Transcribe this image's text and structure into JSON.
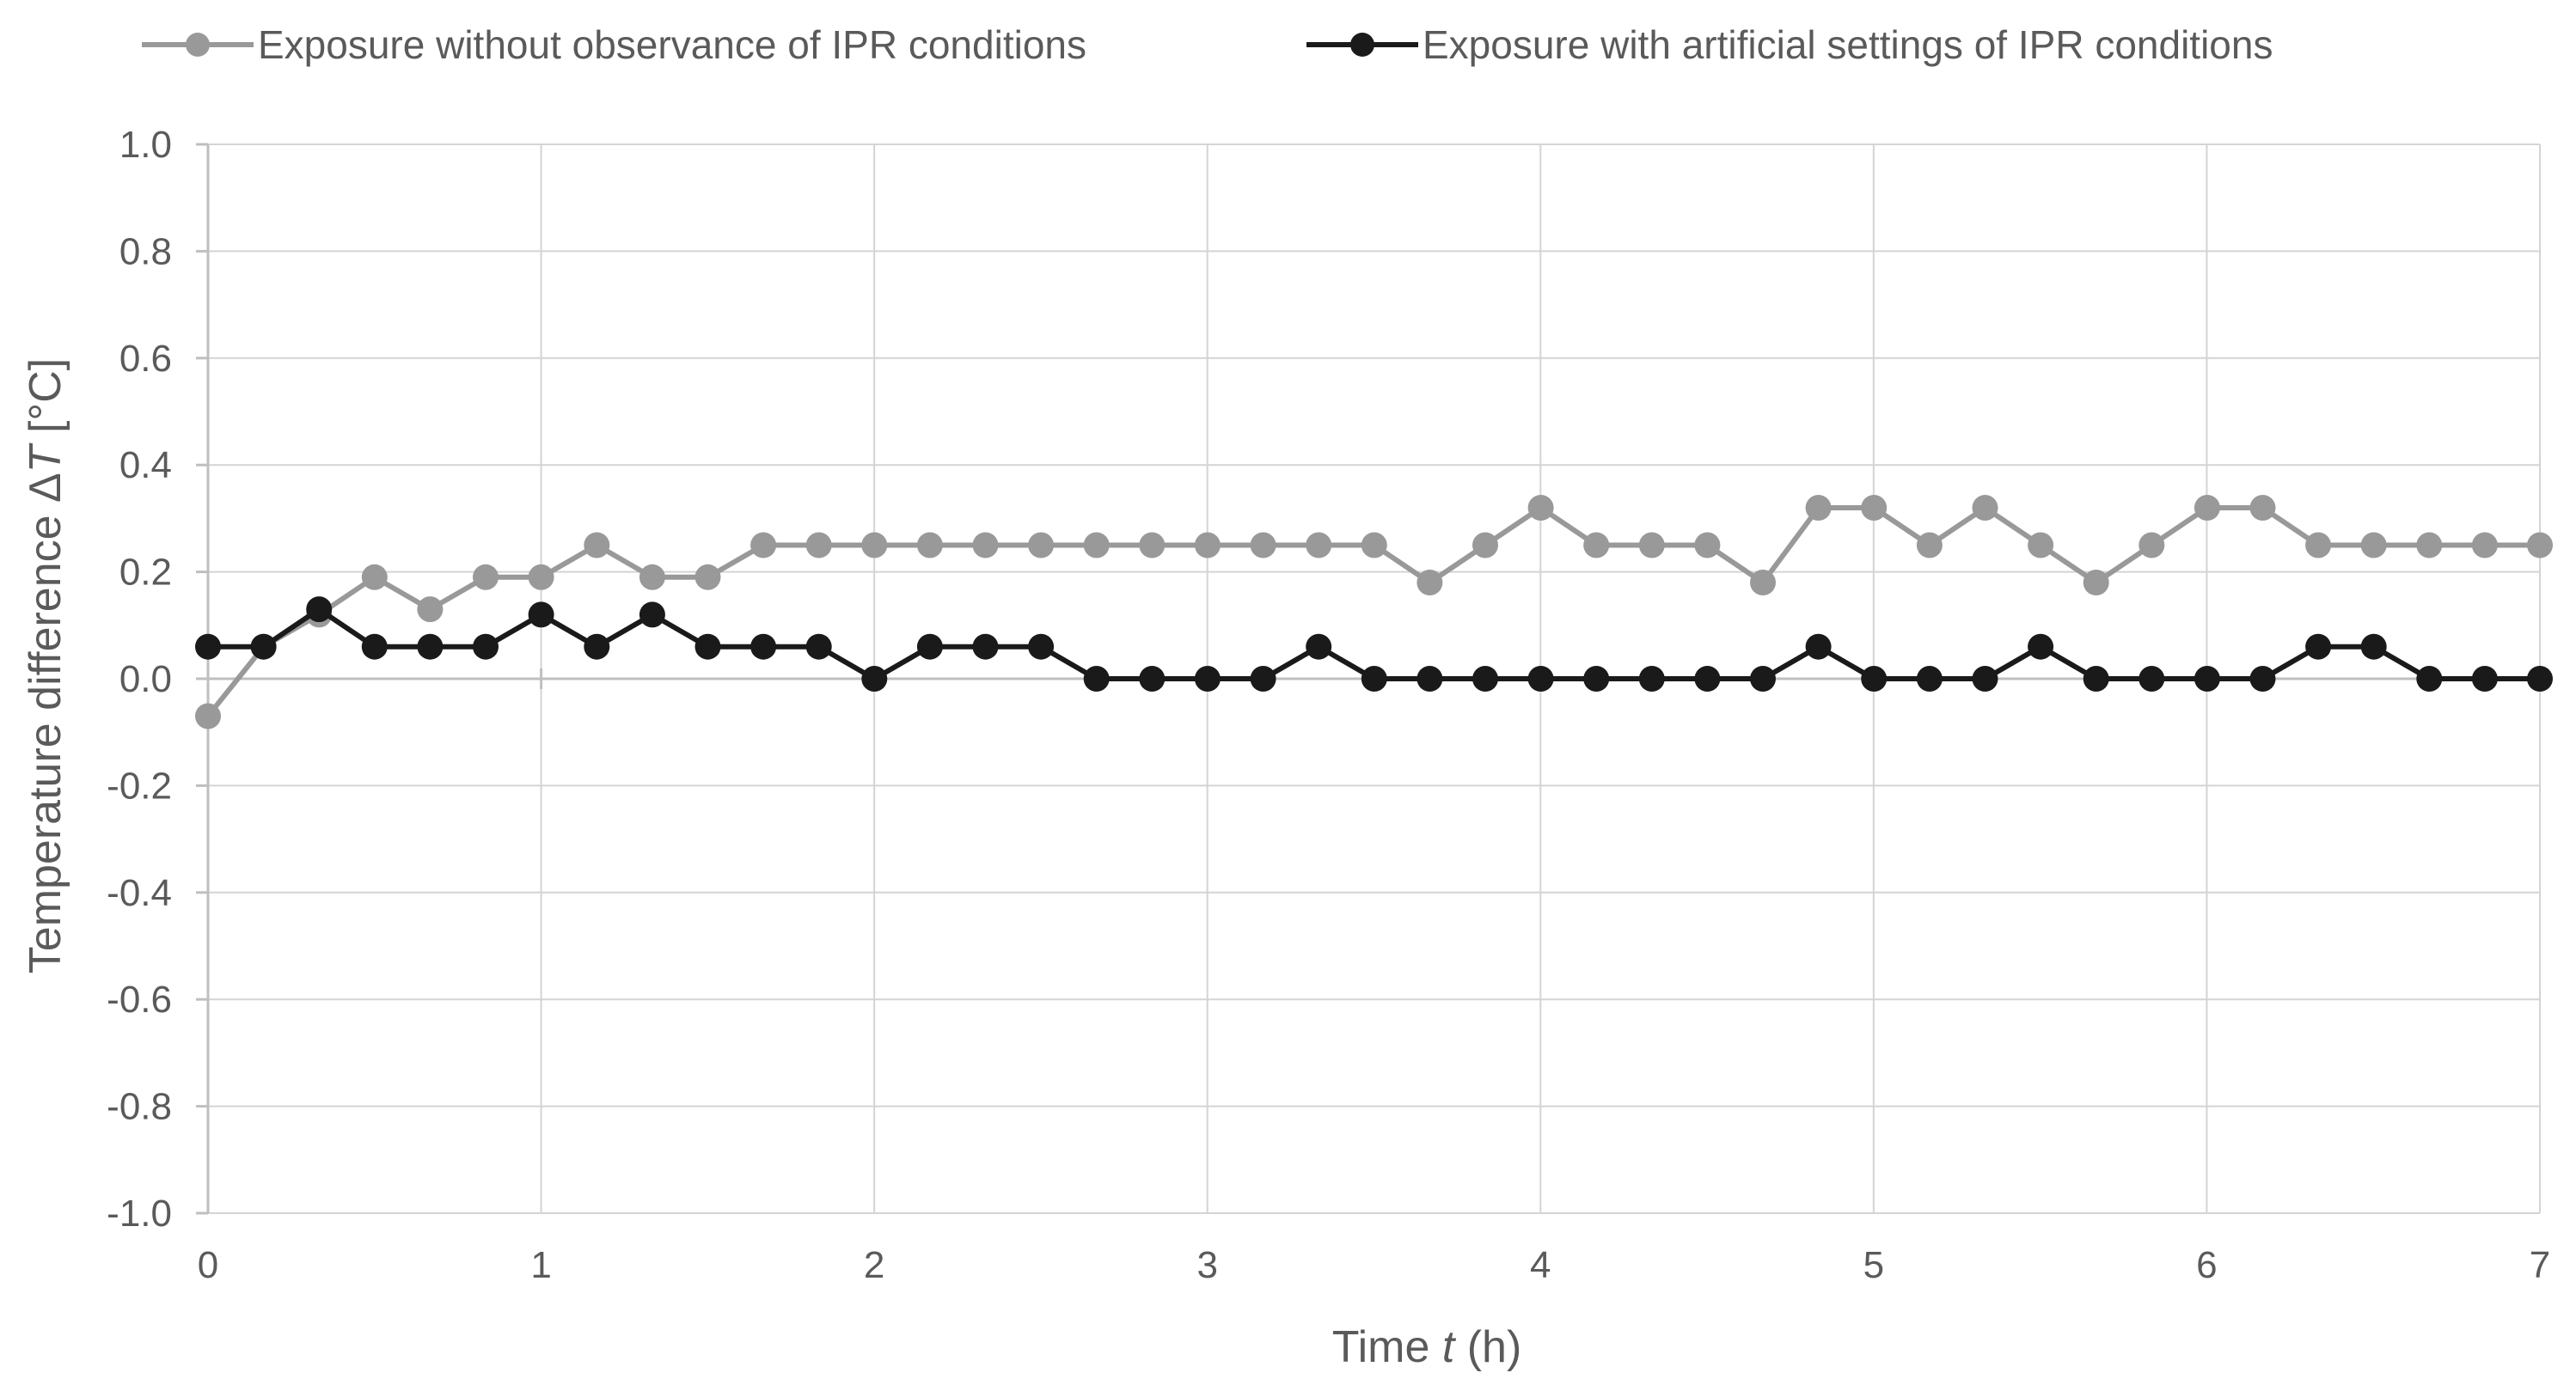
{
  "chart_data": {
    "type": "line",
    "xlabel_prefix": "Time ",
    "xlabel_var": "t",
    "xlabel_suffix": " (h)",
    "ylabel_prefix": "Temperature difference Δ",
    "ylabel_var": "T",
    "ylabel_suffix": " [°C]",
    "xlim": [
      0,
      7
    ],
    "ylim": [
      -1.0,
      1.0
    ],
    "x_ticks": [
      0,
      1,
      2,
      3,
      4,
      5,
      6,
      7
    ],
    "x_tick_labels": [
      "0",
      "1",
      "2",
      "3",
      "4",
      "5",
      "6",
      "7"
    ],
    "y_ticks": [
      1.0,
      0.8,
      0.6,
      0.4,
      0.2,
      0.0,
      -0.2,
      -0.4,
      -0.6,
      -0.8,
      -1.0
    ],
    "y_tick_labels": [
      "1.0",
      "0.8",
      "0.6",
      "0.4",
      "0.2",
      "0.0",
      "-0.2",
      "-0.4",
      "-0.6",
      "-0.8",
      "-1.0"
    ],
    "grid": true,
    "legend_position": "top",
    "x_step": 0.1667,
    "series": [
      {
        "name": "Exposure without observance of IPR conditions",
        "color": "#999999",
        "values": [
          -0.07,
          0.06,
          0.12,
          0.19,
          0.13,
          0.19,
          0.19,
          0.25,
          0.19,
          0.19,
          0.25,
          0.25,
          0.25,
          0.25,
          0.25,
          0.25,
          0.25,
          0.25,
          0.25,
          0.25,
          0.25,
          0.25,
          0.18,
          0.25,
          0.32,
          0.25,
          0.25,
          0.25,
          0.18,
          0.32,
          0.32,
          0.25,
          0.32,
          0.25,
          0.18,
          0.25,
          0.32,
          0.32,
          0.25,
          0.25,
          0.25,
          0.25,
          0.25
        ]
      },
      {
        "name": "Exposure with artificial settings of IPR conditions",
        "color": "#1a1a1a",
        "values": [
          0.06,
          0.06,
          0.13,
          0.06,
          0.06,
          0.06,
          0.12,
          0.06,
          0.12,
          0.06,
          0.06,
          0.06,
          0.0,
          0.06,
          0.06,
          0.06,
          0.0,
          0.0,
          0.0,
          0.0,
          0.06,
          0.0,
          0.0,
          0.0,
          0.0,
          0.0,
          0.0,
          0.0,
          0.0,
          0.06,
          0.0,
          0.0,
          0.0,
          0.06,
          0.0,
          0.0,
          0.0,
          0.0,
          0.06,
          0.06,
          0.0,
          0.0,
          0.0
        ]
      }
    ]
  }
}
